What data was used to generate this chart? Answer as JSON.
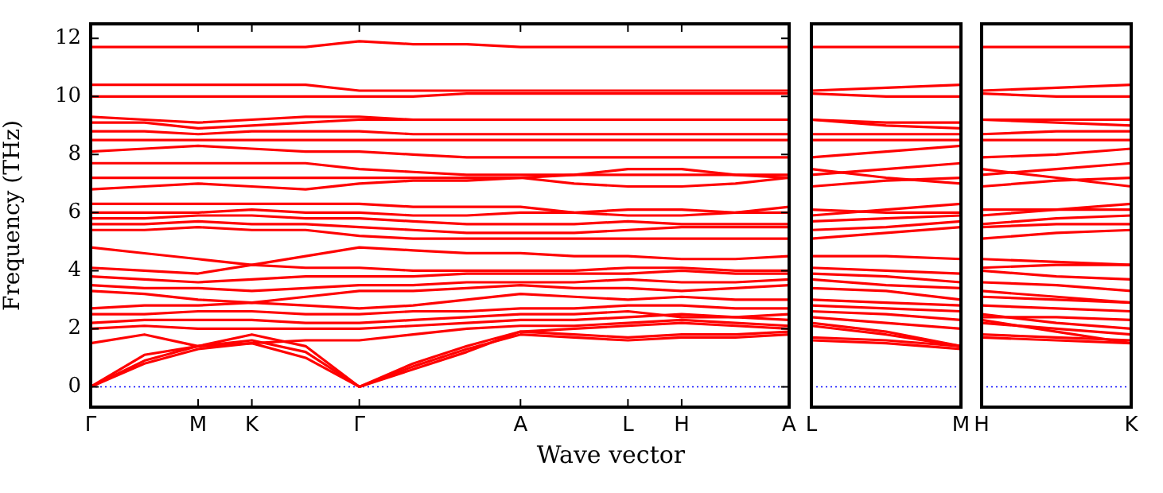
{
  "chart_data": [
    {
      "type": "line",
      "ylabel": "Frequency (THz)",
      "xlabel": "Wave vector",
      "color": "#ff0000",
      "grid": false,
      "legend": false,
      "marker": "none",
      "line_style": "solid",
      "categories": [
        "Γ",
        null,
        "M",
        "K",
        null,
        "Γ",
        null,
        null,
        "A",
        null,
        "L",
        "H",
        null,
        "A"
      ],
      "ylim": [
        -0.7,
        12.5
      ],
      "yticks": [
        0,
        2,
        4,
        6,
        8,
        10,
        12
      ],
      "ref_lines": [
        {
          "axis": "y",
          "value": 0,
          "color": "#0000ff",
          "line_style": "dotted"
        }
      ],
      "series": [
        {
          "values": [
            0,
            0.8,
            1.3,
            1.5,
            1.0,
            0,
            0.7,
            1.3,
            1.8,
            1.7,
            1.6,
            1.7,
            1.7,
            1.8
          ]
        },
        {
          "values": [
            0,
            0.9,
            1.4,
            1.6,
            1.2,
            0,
            0.8,
            1.4,
            1.9,
            1.8,
            1.7,
            1.8,
            1.8,
            1.9
          ]
        },
        {
          "values": [
            0,
            1.1,
            1.4,
            1.8,
            1.4,
            0,
            0.6,
            1.2,
            1.9,
            2.0,
            2.1,
            2.2,
            2.1,
            2.0
          ]
        },
        {
          "values": [
            1.5,
            1.8,
            1.4,
            1.5,
            1.6,
            1.6,
            1.8,
            2.0,
            2.1,
            2.1,
            2.2,
            2.3,
            2.2,
            2.1
          ]
        },
        {
          "values": [
            2.0,
            2.1,
            2.0,
            2.0,
            2.0,
            2.0,
            2.1,
            2.2,
            2.3,
            2.3,
            2.4,
            2.5,
            2.4,
            2.3
          ]
        },
        {
          "values": [
            2.2,
            2.3,
            2.3,
            2.3,
            2.2,
            2.2,
            2.3,
            2.4,
            2.5,
            2.5,
            2.6,
            2.4,
            2.4,
            2.5
          ]
        },
        {
          "values": [
            2.5,
            2.5,
            2.6,
            2.6,
            2.5,
            2.5,
            2.6,
            2.6,
            2.7,
            2.7,
            2.8,
            2.8,
            2.7,
            2.7
          ]
        },
        {
          "values": [
            2.7,
            2.8,
            2.8,
            2.9,
            2.8,
            2.7,
            2.8,
            3.0,
            3.2,
            3.1,
            3.0,
            3.1,
            3.0,
            3.0
          ]
        },
        {
          "values": [
            3.3,
            3.2,
            3.0,
            2.9,
            3.1,
            3.3,
            3.3,
            3.4,
            3.5,
            3.4,
            3.4,
            3.3,
            3.4,
            3.5
          ]
        },
        {
          "values": [
            3.5,
            3.4,
            3.4,
            3.3,
            3.4,
            3.5,
            3.5,
            3.6,
            3.6,
            3.6,
            3.7,
            3.6,
            3.6,
            3.7
          ]
        },
        {
          "values": [
            3.8,
            3.7,
            3.6,
            3.7,
            3.8,
            3.8,
            3.8,
            3.9,
            3.9,
            3.9,
            3.9,
            4.0,
            3.9,
            3.9
          ]
        },
        {
          "values": [
            4.1,
            4.0,
            3.9,
            4.2,
            4.1,
            4.1,
            4.0,
            4.0,
            4.0,
            4.0,
            4.1,
            4.1,
            4.0,
            4.0
          ]
        },
        {
          "values": [
            4.8,
            4.6,
            4.4,
            4.2,
            4.5,
            4.8,
            4.7,
            4.6,
            4.6,
            4.5,
            4.5,
            4.4,
            4.4,
            4.5
          ]
        },
        {
          "values": [
            5.4,
            5.4,
            5.5,
            5.4,
            5.4,
            5.2,
            5.1,
            5.1,
            5.1,
            5.1,
            5.1,
            5.1,
            5.1,
            5.1
          ]
        },
        {
          "values": [
            5.6,
            5.6,
            5.7,
            5.6,
            5.6,
            5.5,
            5.4,
            5.3,
            5.3,
            5.3,
            5.4,
            5.5,
            5.5,
            5.5
          ]
        },
        {
          "values": [
            5.8,
            5.8,
            5.9,
            5.9,
            5.8,
            5.8,
            5.7,
            5.6,
            5.6,
            5.6,
            5.7,
            5.6,
            5.6,
            5.6
          ]
        },
        {
          "values": [
            6.0,
            6.0,
            6.0,
            6.1,
            6.0,
            6.0,
            5.9,
            5.9,
            6.0,
            6.0,
            6.1,
            6.1,
            6.0,
            6.0
          ]
        },
        {
          "values": [
            6.3,
            6.3,
            6.3,
            6.3,
            6.3,
            6.3,
            6.2,
            6.2,
            6.2,
            6.0,
            5.9,
            5.9,
            6.0,
            6.2
          ]
        },
        {
          "values": [
            6.8,
            6.9,
            7.0,
            6.9,
            6.8,
            7.0,
            7.1,
            7.1,
            7.2,
            7.3,
            7.5,
            7.5,
            7.3,
            7.2
          ]
        },
        {
          "values": [
            7.2,
            7.2,
            7.2,
            7.2,
            7.2,
            7.2,
            7.2,
            7.2,
            7.2,
            7.0,
            6.9,
            6.9,
            7.0,
            7.2
          ]
        },
        {
          "values": [
            7.7,
            7.7,
            7.7,
            7.7,
            7.7,
            7.5,
            7.4,
            7.3,
            7.3,
            7.3,
            7.3,
            7.3,
            7.3,
            7.3
          ]
        },
        {
          "values": [
            8.1,
            8.2,
            8.3,
            8.2,
            8.1,
            8.1,
            8.0,
            7.9,
            7.9,
            7.9,
            7.9,
            7.9,
            7.9,
            7.9
          ]
        },
        {
          "values": [
            8.5,
            8.5,
            8.5,
            8.5,
            8.5,
            8.5,
            8.5,
            8.5,
            8.5,
            8.5,
            8.5,
            8.5,
            8.5,
            8.5
          ]
        },
        {
          "values": [
            8.8,
            8.8,
            8.7,
            8.8,
            8.8,
            8.8,
            8.7,
            8.7,
            8.7,
            8.7,
            8.7,
            8.7,
            8.7,
            8.7
          ]
        },
        {
          "values": [
            9.1,
            9.1,
            8.9,
            9.0,
            9.1,
            9.2,
            9.2,
            9.2,
            9.2,
            9.2,
            9.2,
            9.2,
            9.2,
            9.2
          ]
        },
        {
          "values": [
            9.3,
            9.2,
            9.1,
            9.2,
            9.3,
            9.3,
            9.2,
            9.2,
            9.2,
            9.2,
            9.2,
            9.2,
            9.2,
            9.2
          ]
        },
        {
          "values": [
            10.0,
            10.0,
            10.0,
            10.0,
            10.0,
            10.0,
            10.0,
            10.1,
            10.1,
            10.1,
            10.1,
            10.1,
            10.1,
            10.1
          ]
        },
        {
          "values": [
            10.4,
            10.4,
            10.4,
            10.4,
            10.4,
            10.2,
            10.2,
            10.2,
            10.2,
            10.2,
            10.2,
            10.2,
            10.2,
            10.2
          ]
        },
        {
          "values": [
            11.7,
            11.7,
            11.7,
            11.7,
            11.7,
            11.9,
            11.8,
            11.8,
            11.7,
            11.7,
            11.7,
            11.7,
            11.7,
            11.7
          ]
        }
      ]
    },
    {
      "type": "line",
      "color": "#ff0000",
      "grid": false,
      "legend": false,
      "marker": "none",
      "line_style": "solid",
      "tick_labels": "x",
      "categories": [
        "L",
        null,
        "M"
      ],
      "ylim": [
        -0.7,
        12.5
      ],
      "ref_lines": [
        {
          "axis": "y",
          "value": 0,
          "color": "#0000ff",
          "line_style": "dotted"
        }
      ],
      "series": [
        {
          "values": [
            1.6,
            1.5,
            1.3
          ]
        },
        {
          "values": [
            1.7,
            1.6,
            1.4
          ]
        },
        {
          "values": [
            2.1,
            1.8,
            1.4
          ]
        },
        {
          "values": [
            2.2,
            1.9,
            1.4
          ]
        },
        {
          "values": [
            2.4,
            2.2,
            2.0
          ]
        },
        {
          "values": [
            2.6,
            2.5,
            2.3
          ]
        },
        {
          "values": [
            2.8,
            2.7,
            2.6
          ]
        },
        {
          "values": [
            3.0,
            2.9,
            2.8
          ]
        },
        {
          "values": [
            3.4,
            3.3,
            3.0
          ]
        },
        {
          "values": [
            3.7,
            3.5,
            3.4
          ]
        },
        {
          "values": [
            3.9,
            3.8,
            3.6
          ]
        },
        {
          "values": [
            4.1,
            4.0,
            3.9
          ]
        },
        {
          "values": [
            4.5,
            4.5,
            4.4
          ]
        },
        {
          "values": [
            5.1,
            5.3,
            5.5
          ]
        },
        {
          "values": [
            5.4,
            5.5,
            5.7
          ]
        },
        {
          "values": [
            5.7,
            5.8,
            5.9
          ]
        },
        {
          "values": [
            6.1,
            6.0,
            6.0
          ]
        },
        {
          "values": [
            5.9,
            6.1,
            6.3
          ]
        },
        {
          "values": [
            7.5,
            7.2,
            7.0
          ]
        },
        {
          "values": [
            6.9,
            7.1,
            7.2
          ]
        },
        {
          "values": [
            7.3,
            7.5,
            7.7
          ]
        },
        {
          "values": [
            7.9,
            8.1,
            8.3
          ]
        },
        {
          "values": [
            8.5,
            8.5,
            8.5
          ]
        },
        {
          "values": [
            8.7,
            8.7,
            8.7
          ]
        },
        {
          "values": [
            9.2,
            9.0,
            8.9
          ]
        },
        {
          "values": [
            9.2,
            9.1,
            9.1
          ]
        },
        {
          "values": [
            10.1,
            10.0,
            10.0
          ]
        },
        {
          "values": [
            10.2,
            10.3,
            10.4
          ]
        },
        {
          "values": [
            11.7,
            11.7,
            11.7
          ]
        }
      ]
    },
    {
      "type": "line",
      "color": "#ff0000",
      "grid": false,
      "legend": false,
      "marker": "none",
      "line_style": "solid",
      "tick_labels": "x",
      "categories": [
        "H",
        null,
        "K"
      ],
      "ylim": [
        -0.7,
        12.5
      ],
      "ref_lines": [
        {
          "axis": "y",
          "value": 0,
          "color": "#0000ff",
          "line_style": "dotted"
        }
      ],
      "series": [
        {
          "values": [
            1.7,
            1.6,
            1.5
          ]
        },
        {
          "values": [
            1.8,
            1.7,
            1.6
          ]
        },
        {
          "values": [
            2.2,
            2.0,
            1.8
          ]
        },
        {
          "values": [
            2.3,
            1.9,
            1.5
          ]
        },
        {
          "values": [
            2.5,
            2.2,
            2.0
          ]
        },
        {
          "values": [
            2.4,
            2.4,
            2.3
          ]
        },
        {
          "values": [
            2.8,
            2.7,
            2.6
          ]
        },
        {
          "values": [
            3.1,
            3.0,
            2.9
          ]
        },
        {
          "values": [
            3.3,
            3.1,
            2.9
          ]
        },
        {
          "values": [
            3.6,
            3.5,
            3.3
          ]
        },
        {
          "values": [
            4.0,
            3.8,
            3.7
          ]
        },
        {
          "values": [
            4.1,
            4.2,
            4.2
          ]
        },
        {
          "values": [
            4.4,
            4.3,
            4.2
          ]
        },
        {
          "values": [
            5.1,
            5.3,
            5.4
          ]
        },
        {
          "values": [
            5.5,
            5.6,
            5.6
          ]
        },
        {
          "values": [
            5.6,
            5.8,
            5.9
          ]
        },
        {
          "values": [
            6.1,
            6.1,
            6.1
          ]
        },
        {
          "values": [
            5.9,
            6.1,
            6.3
          ]
        },
        {
          "values": [
            7.5,
            7.2,
            6.9
          ]
        },
        {
          "values": [
            6.9,
            7.1,
            7.2
          ]
        },
        {
          "values": [
            7.3,
            7.5,
            7.7
          ]
        },
        {
          "values": [
            7.9,
            8.0,
            8.2
          ]
        },
        {
          "values": [
            8.5,
            8.5,
            8.5
          ]
        },
        {
          "values": [
            8.7,
            8.8,
            8.8
          ]
        },
        {
          "values": [
            9.2,
            9.1,
            9.0
          ]
        },
        {
          "values": [
            9.2,
            9.2,
            9.2
          ]
        },
        {
          "values": [
            10.1,
            10.0,
            10.0
          ]
        },
        {
          "values": [
            10.2,
            10.3,
            10.4
          ]
        },
        {
          "values": [
            11.7,
            11.7,
            11.7
          ]
        }
      ]
    }
  ]
}
